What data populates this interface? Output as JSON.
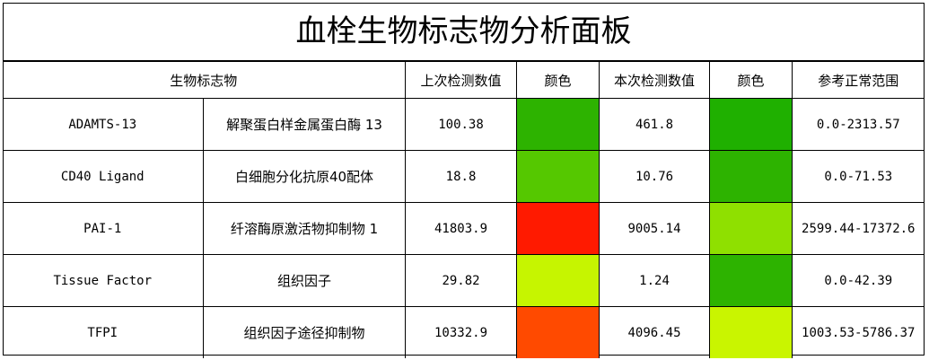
{
  "title": "血栓生物标志物分析面板",
  "headers": {
    "biomarker": "生物标志物",
    "prev_value": "上次检测数值",
    "prev_color": "颜色",
    "curr_value": "本次检测数值",
    "curr_color": "颜色",
    "range": "参考正常范围"
  },
  "rows": [
    {
      "name": "ADAMTS-13",
      "cn_name": "解聚蛋白样金属蛋白酶 13",
      "prev": "100.38",
      "prev_color": "#2db300",
      "curr": "461.8",
      "curr_color": "#1fb000",
      "range": "0.0-2313.57"
    },
    {
      "name": "CD40 Ligand",
      "cn_name": "白细胞分化抗原40配体",
      "prev": "18.8",
      "prev_color": "#55c800",
      "curr": "10.76",
      "curr_color": "#2db300",
      "range": "0.0-71.53"
    },
    {
      "name": "PAI-1",
      "cn_name": "纤溶酶原激活物抑制物 1",
      "prev": "41803.9",
      "prev_color": "#ff1a00",
      "curr": "9005.14",
      "curr_color": "#8fe000",
      "range": "2599.44-17372.6"
    },
    {
      "name": "Tissue Factor",
      "cn_name": "组织因子",
      "prev": "29.82",
      "prev_color": "#c6f500",
      "curr": "1.24",
      "curr_color": "#2db300",
      "range": "0.0-42.39"
    },
    {
      "name": "TFPI",
      "cn_name": "组织因子途径抑制物",
      "prev": "10332.9",
      "prev_color": "#ff4a00",
      "curr": "4096.45",
      "curr_color": "#c9f500",
      "range": "1003.53-5786.37"
    }
  ]
}
